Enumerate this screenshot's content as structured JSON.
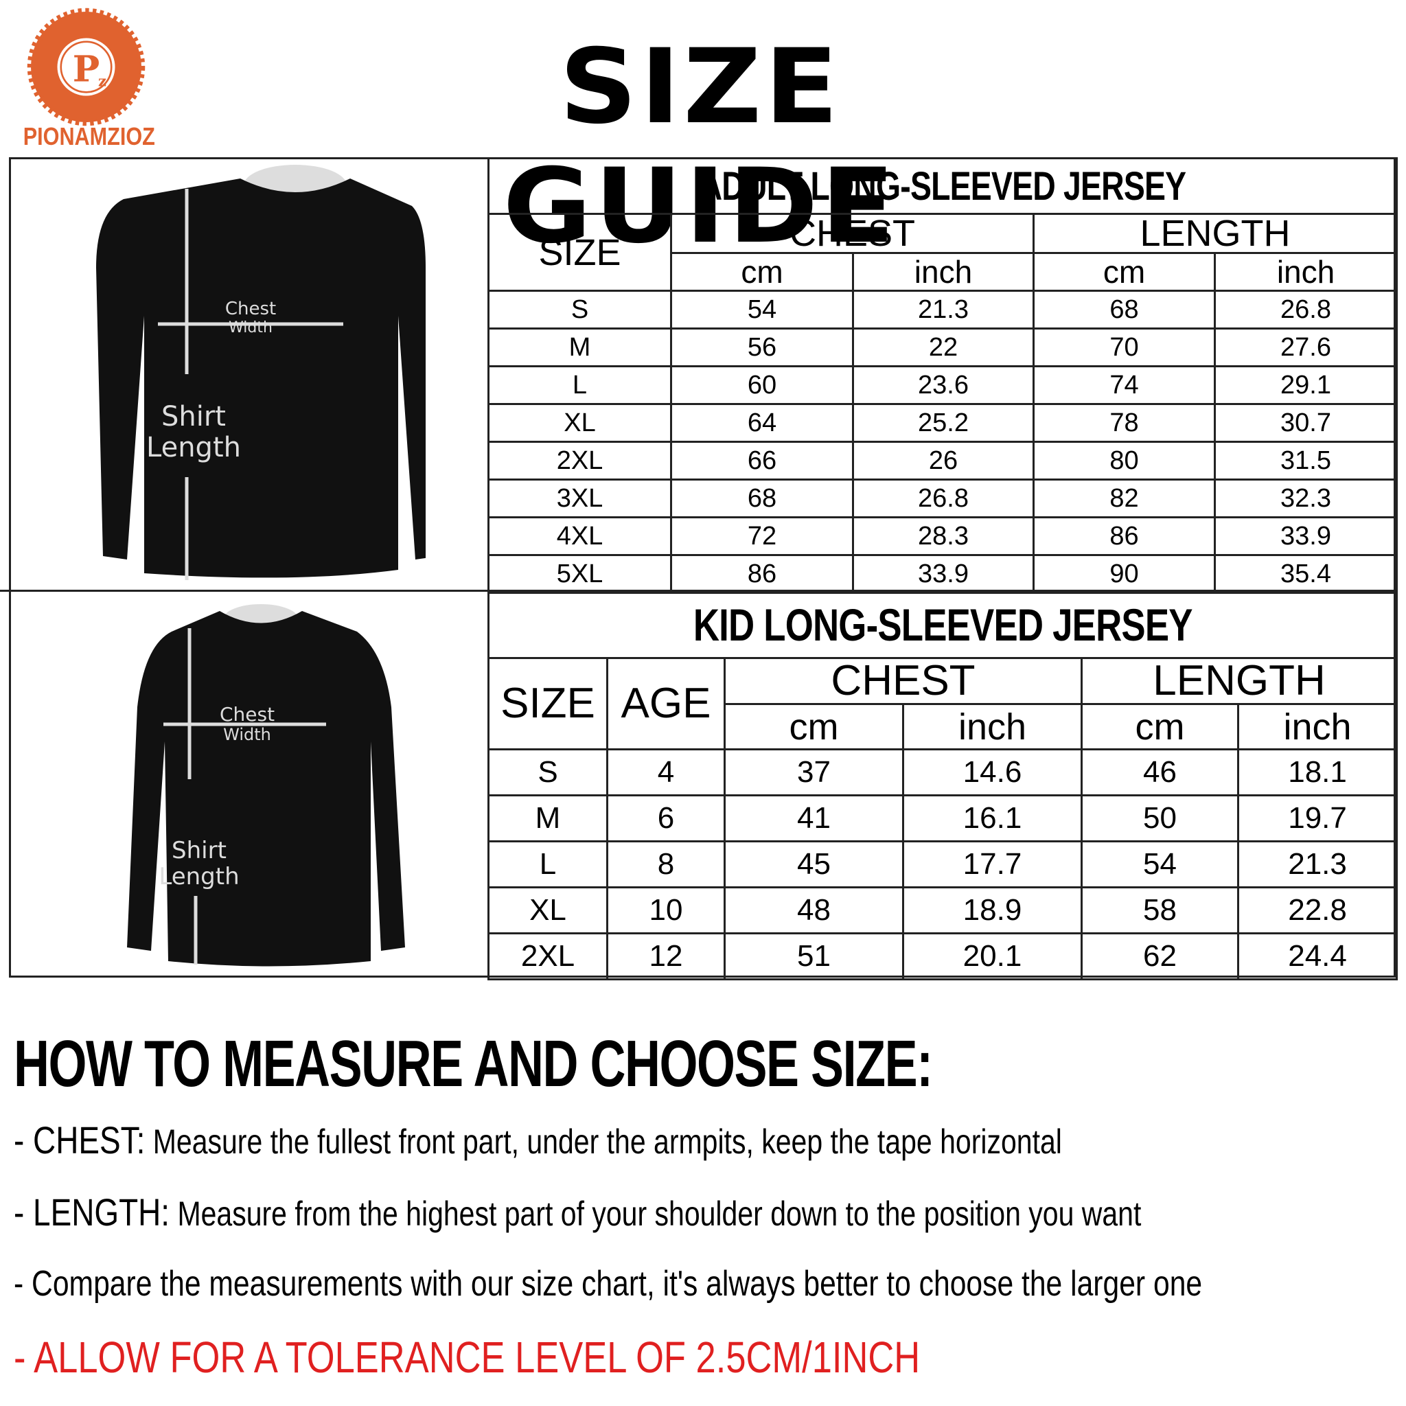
{
  "brand": {
    "name": "PIONAMZIOZ",
    "logo_letters": "Pz",
    "color": "#e0622f"
  },
  "title": "SIZE GUIDE",
  "figure_labels": {
    "chest": "Chest",
    "width": "Width",
    "shirt": "Shirt",
    "length": "Length"
  },
  "adult": {
    "title": "ADULT LONG-SLEEVED JERSEY",
    "headers": {
      "size": "SIZE",
      "chest": "CHEST",
      "length": "LENGTH",
      "cm": "cm",
      "inch": "inch"
    },
    "rows": [
      [
        "S",
        "54",
        "21.3",
        "68",
        "26.8"
      ],
      [
        "M",
        "56",
        "22",
        "70",
        "27.6"
      ],
      [
        "L",
        "60",
        "23.6",
        "74",
        "29.1"
      ],
      [
        "XL",
        "64",
        "25.2",
        "78",
        "30.7"
      ],
      [
        "2XL",
        "66",
        "26",
        "80",
        "31.5"
      ],
      [
        "3XL",
        "68",
        "26.8",
        "82",
        "32.3"
      ],
      [
        "4XL",
        "72",
        "28.3",
        "86",
        "33.9"
      ],
      [
        "5XL",
        "86",
        "33.9",
        "90",
        "35.4"
      ]
    ]
  },
  "kid": {
    "title": "KID LONG-SLEEVED JERSEY",
    "headers": {
      "size": "SIZE",
      "age": "AGE",
      "chest": "CHEST",
      "length": "LENGTH",
      "cm": "cm",
      "inch": "inch"
    },
    "rows": [
      [
        "S",
        "4",
        "37",
        "14.6",
        "46",
        "18.1"
      ],
      [
        "M",
        "6",
        "41",
        "16.1",
        "50",
        "19.7"
      ],
      [
        "L",
        "8",
        "45",
        "17.7",
        "54",
        "21.3"
      ],
      [
        "XL",
        "10",
        "48",
        "18.9",
        "58",
        "22.8"
      ],
      [
        "2XL",
        "12",
        "51",
        "20.1",
        "62",
        "24.4"
      ]
    ]
  },
  "howto": {
    "heading": "HOW TO MEASURE AND CHOOSE SIZE:",
    "chest_label": "- CHEST:",
    "chest_text": " Measure the fullest front part, under the armpits, keep the tape horizontal",
    "length_label": "- LENGTH:",
    "length_text": " Measure from the highest part of your shoulder down to the position you want",
    "compare": "- Compare the measurements with our size chart, it's always better to choose the larger one",
    "tolerance": "- ALLOW FOR A TOLERANCE LEVEL OF 2.5CM/1INCH",
    "tolerance_color": "#e02020"
  }
}
